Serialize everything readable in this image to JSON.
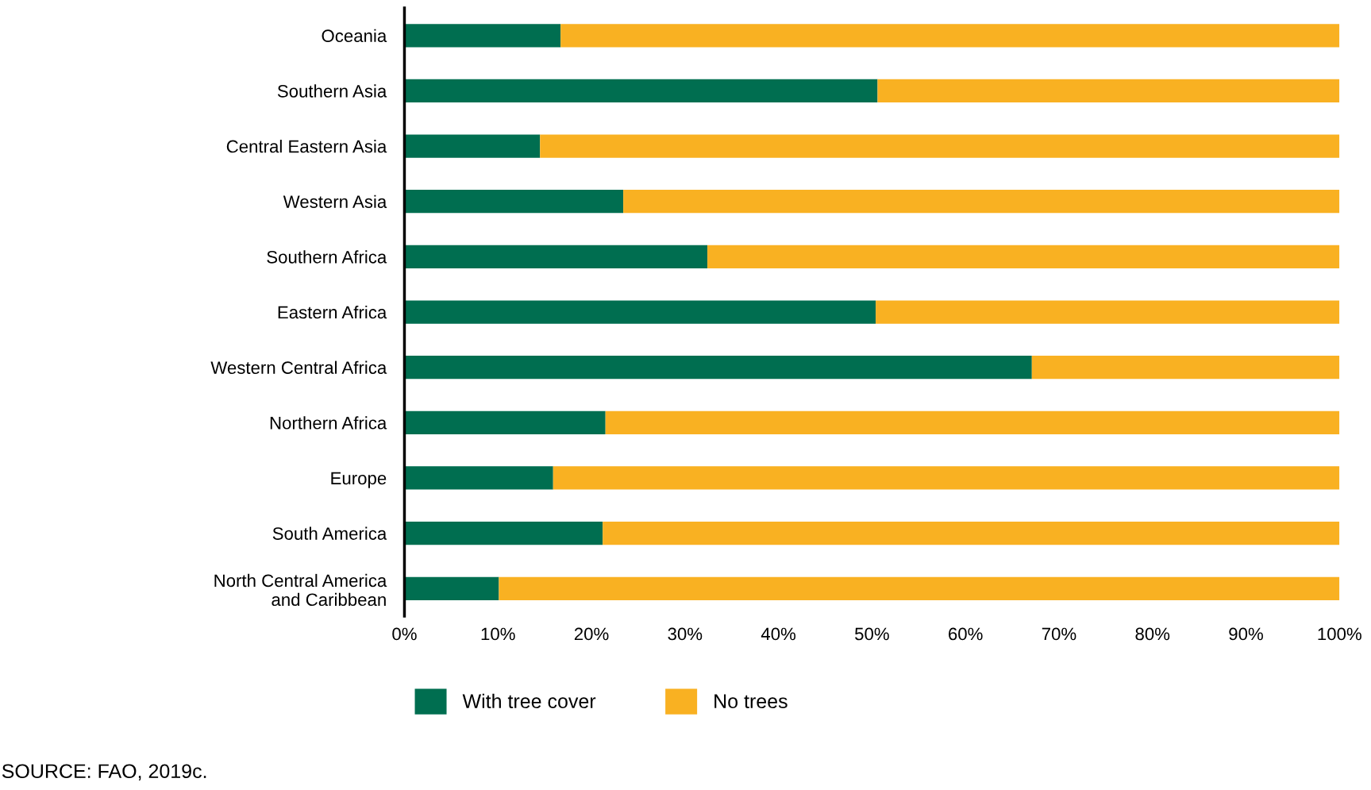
{
  "chart_data": {
    "type": "bar",
    "orientation": "horizontal",
    "stacked": true,
    "categories": [
      "Oceania",
      "Southern Asia",
      "Central Eastern Asia",
      "Western Asia",
      "Southern Africa",
      "Eastern Africa",
      "Western Central Africa",
      "Northern Africa",
      "Europe",
      "South America",
      "North Central America\nand Caribbean"
    ],
    "series": [
      {
        "name": "With tree cover",
        "color": "#006e50",
        "values": [
          16.7,
          50.6,
          14.5,
          23.4,
          32.4,
          50.4,
          67.1,
          21.5,
          15.9,
          21.2,
          10.1
        ]
      },
      {
        "name": "No trees",
        "color": "#f9b122",
        "values": [
          83.3,
          49.4,
          85.5,
          76.6,
          67.6,
          49.6,
          32.9,
          78.5,
          84.1,
          78.8,
          89.9
        ]
      }
    ],
    "xlim": [
      0,
      100
    ],
    "xticks": [
      {
        "value": 0,
        "label": "0%"
      },
      {
        "value": 10,
        "label": "10%"
      },
      {
        "value": 20,
        "label": "20%"
      },
      {
        "value": 30,
        "label": "30%"
      },
      {
        "value": 40,
        "label": "40%"
      },
      {
        "value": 50,
        "label": "50%"
      },
      {
        "value": 60,
        "label": "60%"
      },
      {
        "value": 70,
        "label": "70%"
      },
      {
        "value": 80,
        "label": "80%"
      },
      {
        "value": 90,
        "label": "90%"
      },
      {
        "value": 100,
        "label": "100%"
      }
    ],
    "grid": false,
    "legend": "bottom",
    "annotations": [
      "SOURCE: FAO, 2019c."
    ]
  }
}
